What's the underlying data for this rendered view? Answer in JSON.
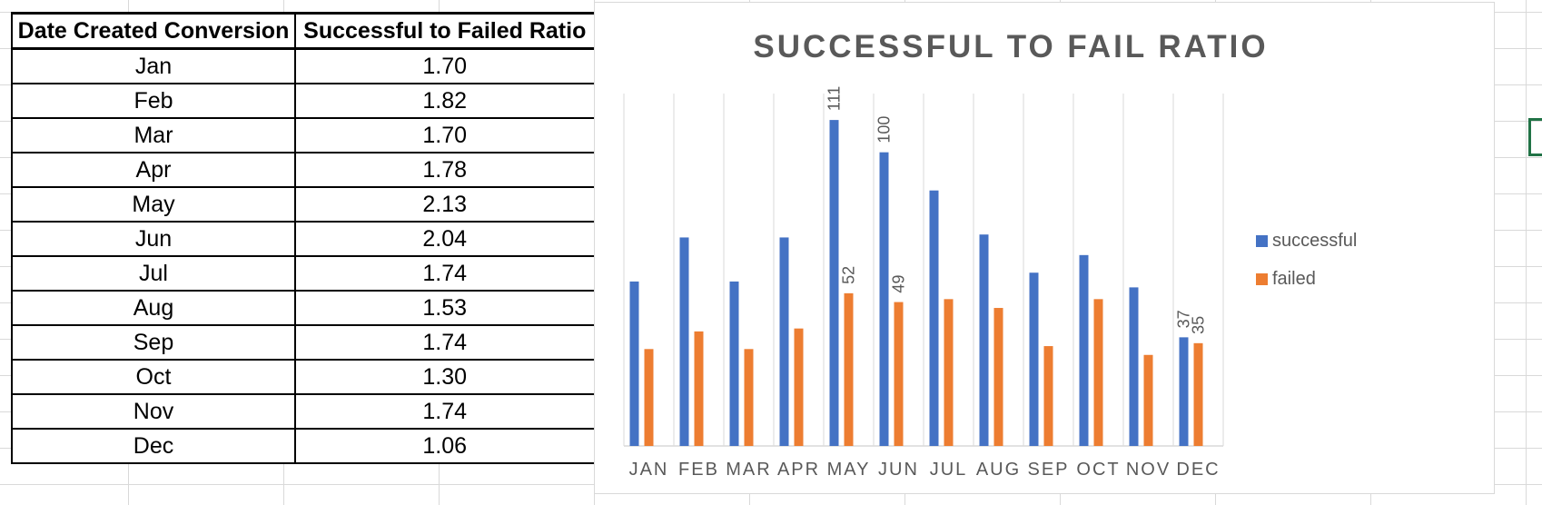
{
  "table": {
    "headers": [
      "Date Created Conversion",
      "Successful to Failed Ratio"
    ],
    "rows": [
      [
        "Jan",
        "1.70"
      ],
      [
        "Feb",
        "1.82"
      ],
      [
        "Mar",
        "1.70"
      ],
      [
        "Apr",
        "1.78"
      ],
      [
        "May",
        "2.13"
      ],
      [
        "Jun",
        "2.04"
      ],
      [
        "Jul",
        "1.74"
      ],
      [
        "Aug",
        "1.53"
      ],
      [
        "Sep",
        "1.74"
      ],
      [
        "Oct",
        "1.30"
      ],
      [
        "Nov",
        "1.74"
      ],
      [
        "Dec",
        "1.06"
      ]
    ]
  },
  "chart_data": {
    "type": "bar",
    "title": "SUCCESSFUL TO FAIL RATIO",
    "categories": [
      "JAN",
      "FEB",
      "MAR",
      "APR",
      "MAY",
      "JUN",
      "JUL",
      "AUG",
      "SEP",
      "OCT",
      "NOV",
      "DEC"
    ],
    "series": [
      {
        "name": "successful",
        "color": "#4472C4",
        "values": [
          56,
          71,
          56,
          71,
          111,
          100,
          87,
          72,
          59,
          65,
          54,
          37
        ]
      },
      {
        "name": "failed",
        "color": "#ED7D31",
        "values": [
          33,
          39,
          33,
          40,
          52,
          49,
          50,
          47,
          34,
          50,
          31,
          35
        ]
      }
    ],
    "data_labels": [
      {
        "series": 0,
        "index": 4,
        "text": "111"
      },
      {
        "series": 0,
        "index": 5,
        "text": "100"
      },
      {
        "series": 1,
        "index": 4,
        "text": "52"
      },
      {
        "series": 1,
        "index": 5,
        "text": "49"
      },
      {
        "series": 0,
        "index": 11,
        "text": "37"
      },
      {
        "series": 1,
        "index": 11,
        "text": "35"
      }
    ],
    "ylim": [
      0,
      120
    ],
    "xlabel": "",
    "ylabel": "",
    "grid": "vertical",
    "legend_position": "right"
  }
}
